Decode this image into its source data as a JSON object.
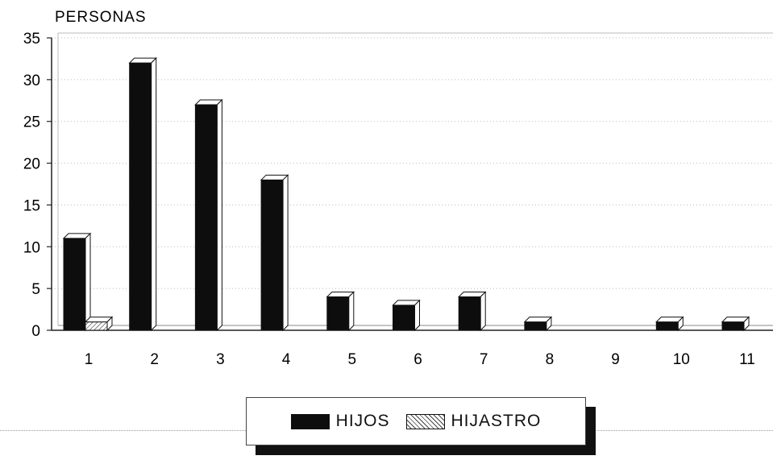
{
  "chart_data": {
    "type": "bar",
    "ylabel": "PERSONAS",
    "xlabel": "",
    "categories": [
      "1",
      "2",
      "3",
      "4",
      "5",
      "6",
      "7",
      "8",
      "9",
      "10",
      "11"
    ],
    "series": [
      {
        "name": "HIJOS",
        "values": [
          11,
          32,
          27,
          18,
          4,
          3,
          4,
          1,
          0,
          1,
          1
        ],
        "color": "#0d0d0d",
        "pattern": "solid"
      },
      {
        "name": "HIJASTRO",
        "values": [
          1,
          0,
          0,
          0,
          0,
          0,
          0,
          0,
          0,
          0,
          0
        ],
        "color": "#ffffff",
        "pattern": "diagonal-hatch"
      }
    ],
    "ylim": [
      0,
      35
    ],
    "yticks": [
      "0",
      "5",
      "10",
      "15",
      "20",
      "25",
      "30",
      "35"
    ],
    "grid": true,
    "style": "3d-bars",
    "legend_position": "bottom"
  }
}
